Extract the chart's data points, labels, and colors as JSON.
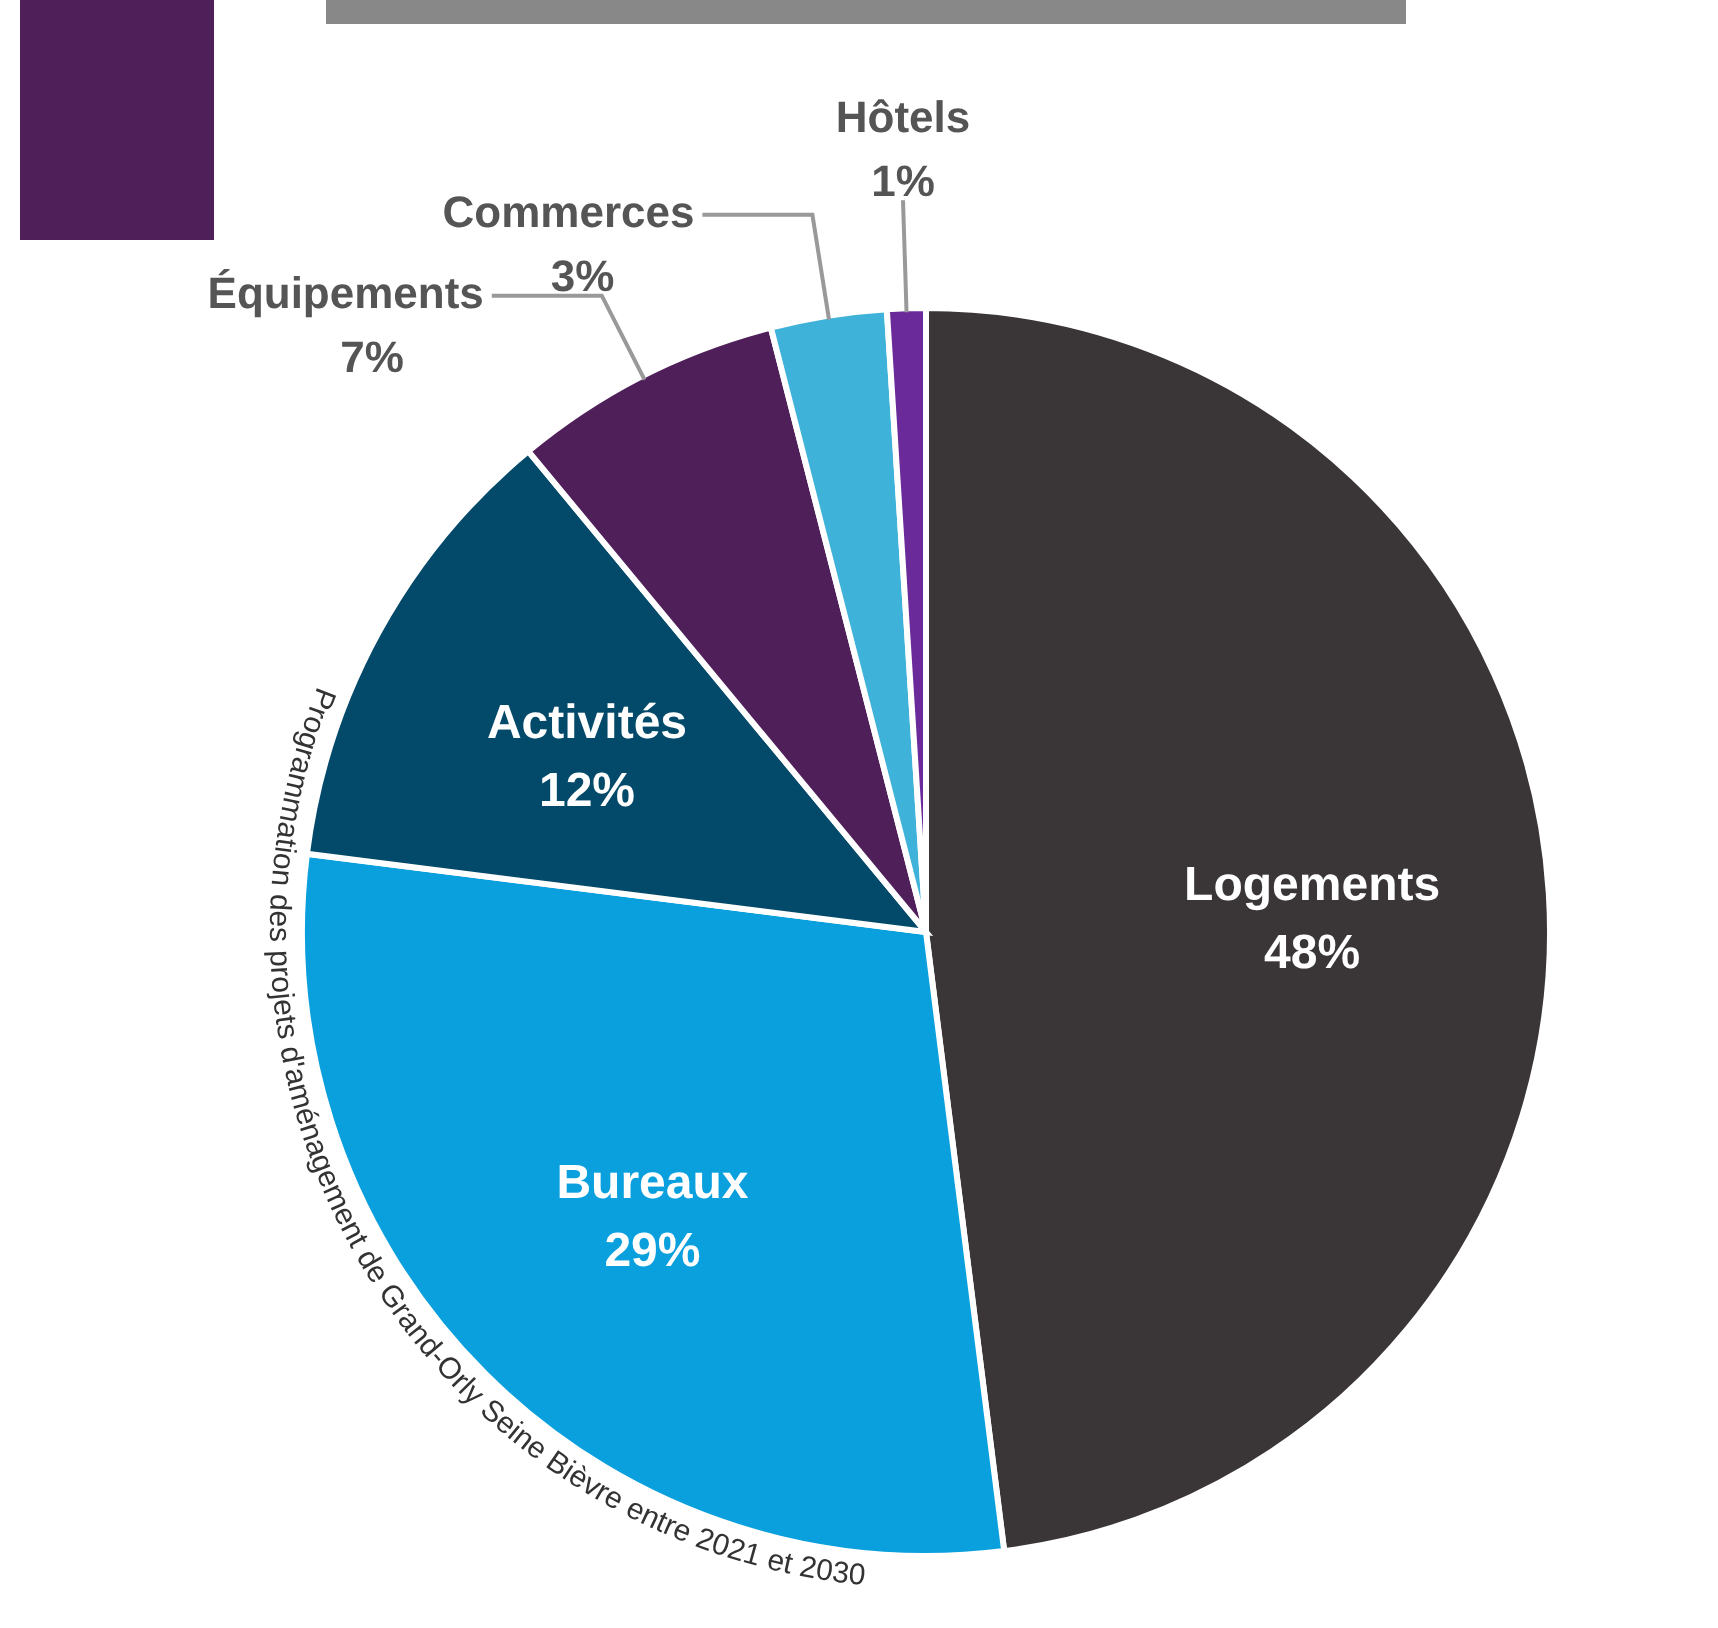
{
  "chart_data": {
    "type": "pie",
    "categories": [
      "Logements",
      "Bureaux",
      "Activités",
      "Équipements",
      "Commerces",
      "Hôtels"
    ],
    "values": [
      48,
      29,
      12,
      7,
      3,
      1
    ],
    "colors": [
      "#3a3536",
      "#0aa0de",
      "#034a6a",
      "#4f1f5a",
      "#3fb2da",
      "#6a2a9a"
    ],
    "value_labels": [
      "48%",
      "29%",
      "12%",
      "7%",
      "3%",
      "1%"
    ],
    "annotations": [
      "Programmation des projets d'aménagement de Grand-Orly Seine Bièvre entre 2021 et 2030"
    ]
  }
}
